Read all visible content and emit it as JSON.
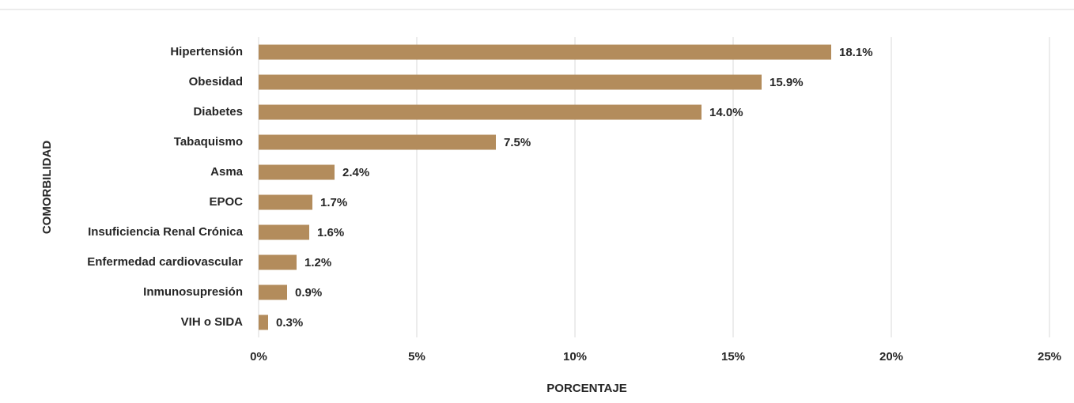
{
  "chart_data": {
    "type": "bar",
    "orientation": "horizontal",
    "x_label": "PORCENTAJE",
    "y_label": "COMORBILIDAD",
    "categories": [
      "Hipertensión",
      "Obesidad",
      "Diabetes",
      "Tabaquismo",
      "Asma",
      "EPOC",
      "Insuficiencia Renal Crónica",
      "Enfermedad cardiovascular",
      "Inmunosupresión",
      "VIH o SIDA"
    ],
    "values": [
      18.1,
      15.9,
      14.0,
      7.5,
      2.4,
      1.7,
      1.6,
      1.2,
      0.9,
      0.3
    ],
    "value_labels": [
      "18.1%",
      "15.9%",
      "14.0%",
      "7.5%",
      "2.4%",
      "1.7%",
      "1.6%",
      "1.2%",
      "0.9%",
      "0.3%"
    ],
    "color": "#b38c5c",
    "xlim": [
      0,
      25
    ],
    "xticks": [
      {
        "value": 0,
        "label": "0%"
      },
      {
        "value": 5,
        "label": "5%"
      },
      {
        "value": 10,
        "label": "10%"
      },
      {
        "value": 15,
        "label": "15%"
      },
      {
        "value": 20,
        "label": "20%"
      },
      {
        "value": 25,
        "label": "25%"
      }
    ],
    "grid": true
  }
}
